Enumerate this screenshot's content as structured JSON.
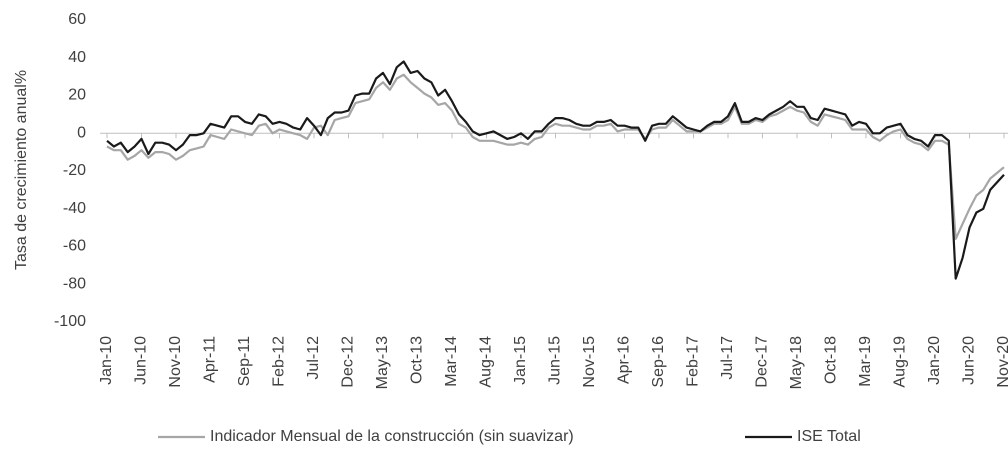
{
  "chart_data": {
    "type": "line",
    "y_label": "Tasa de crecimiento anual%",
    "categories": [
      "Jan-10",
      null,
      null,
      null,
      null,
      "Jun-10",
      null,
      null,
      null,
      null,
      "Nov-10",
      null,
      null,
      null,
      null,
      "Apr-11",
      null,
      null,
      null,
      null,
      "Sep-11",
      null,
      null,
      null,
      null,
      "Feb-12",
      null,
      null,
      null,
      null,
      "Jul-12",
      null,
      null,
      null,
      null,
      "Dec-12",
      null,
      null,
      null,
      null,
      "May-13",
      null,
      null,
      null,
      null,
      "Oct-13",
      null,
      null,
      null,
      null,
      "Mar-14",
      null,
      null,
      null,
      null,
      "Aug-14",
      null,
      null,
      null,
      null,
      "Jan-15",
      null,
      null,
      null,
      null,
      "Jun-15",
      null,
      null,
      null,
      null,
      "Nov-15",
      null,
      null,
      null,
      null,
      "Apr-16",
      null,
      null,
      null,
      null,
      "Sep-16",
      null,
      null,
      null,
      null,
      "Feb-17",
      null,
      null,
      null,
      null,
      "Jul-17",
      null,
      null,
      null,
      null,
      "Dec-17",
      null,
      null,
      null,
      null,
      "May-18",
      null,
      null,
      null,
      null,
      "Oct-18",
      null,
      null,
      null,
      null,
      "Mar-19",
      null,
      null,
      null,
      null,
      "Aug-19",
      null,
      null,
      null,
      null,
      "Jan-20",
      null,
      null,
      null,
      null,
      "Jun-20",
      null,
      null,
      null,
      null,
      "Nov-20"
    ],
    "series": [
      {
        "name": "Indicador Mensual de la construcción (sin suavizar)",
        "color": "#a6a6a6",
        "values": [
          -7,
          -9,
          -9,
          -14,
          -12,
          -9,
          -13,
          -10,
          -10,
          -11,
          -14,
          -12,
          -9,
          -8,
          -7,
          -1,
          -2,
          -3,
          2,
          1,
          0,
          -1,
          4,
          5,
          0,
          2,
          1,
          0,
          -1,
          -3,
          3,
          4,
          -1,
          7,
          8,
          9,
          16,
          17,
          18,
          24,
          27,
          23,
          29,
          31,
          27,
          24,
          21,
          19,
          15,
          16,
          12,
          5,
          3,
          -2,
          -4,
          -4,
          -4,
          -5,
          -6,
          -6,
          -5,
          -6,
          -3,
          -2,
          3,
          5,
          4,
          4,
          3,
          2,
          2,
          4,
          4,
          5,
          1,
          2,
          2,
          2,
          -3,
          2,
          3,
          3,
          7,
          4,
          1,
          1,
          1,
          3,
          5,
          5,
          7,
          14,
          5,
          5,
          7,
          6,
          9,
          10,
          12,
          14,
          12,
          11,
          6,
          4,
          10,
          9,
          8,
          7,
          2,
          2,
          2,
          -2,
          -4,
          -1,
          1,
          2,
          -3,
          -5,
          -6,
          -9,
          -4,
          -4,
          -6,
          -56,
          -48,
          -40,
          -33,
          -30,
          -24,
          -21,
          -18
        ]
      },
      {
        "name": "ISE Total",
        "color": "#1a1a1a",
        "values": [
          -4,
          -7,
          -5,
          -10,
          -7,
          -3,
          -11,
          -5,
          -5,
          -6,
          -9,
          -6,
          -1,
          -1,
          0,
          5,
          4,
          3,
          9,
          9,
          6,
          5,
          10,
          9,
          5,
          6,
          5,
          3,
          2,
          8,
          4,
          -1,
          8,
          11,
          11,
          12,
          20,
          21,
          21,
          29,
          32,
          26,
          35,
          38,
          32,
          33,
          29,
          27,
          20,
          23,
          17,
          10,
          6,
          1,
          -1,
          0,
          1,
          -1,
          -3,
          -2,
          0,
          -3,
          1,
          1,
          5,
          8,
          8,
          7,
          5,
          4,
          4,
          6,
          6,
          7,
          4,
          4,
          3,
          3,
          -4,
          4,
          5,
          5,
          9,
          6,
          3,
          2,
          1,
          4,
          6,
          6,
          9,
          16,
          6,
          6,
          8,
          7,
          10,
          12,
          14,
          17,
          14,
          14,
          8,
          7,
          13,
          12,
          11,
          10,
          4,
          6,
          5,
          0,
          0,
          3,
          4,
          5,
          -1,
          -3,
          -4,
          -7,
          -1,
          -1,
          -4,
          -77,
          -66,
          -50,
          -42,
          -40,
          -30,
          -26,
          -22
        ]
      }
    ],
    "ylim": [
      -100,
      60
    ],
    "yticks": [
      -100,
      -80,
      -60,
      -40,
      -20,
      0,
      20,
      40,
      60
    ],
    "grid": false,
    "legend": "bottom"
  }
}
